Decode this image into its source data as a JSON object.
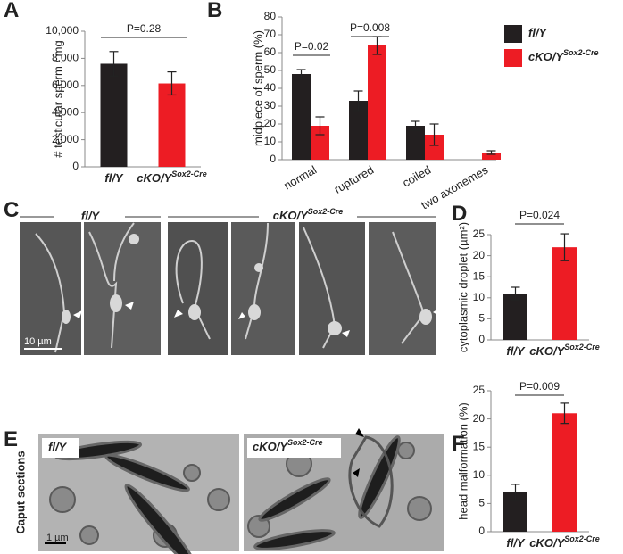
{
  "panels": {
    "labels": [
      "A",
      "B",
      "C",
      "D",
      "E",
      "F"
    ],
    "C": {
      "groups": [
        {
          "text": "fl/Y"
        },
        {
          "text": "cKO/Y",
          "sup": "Sox2-Cre"
        }
      ],
      "scale_bar": "10 µm"
    },
    "E": {
      "images": [
        {
          "text": "fl/Y"
        },
        {
          "text": "cKO/Y",
          "sup": "Sox2-Cre"
        }
      ],
      "side_label": "Caput sections",
      "scale_bar": "1 µm"
    }
  },
  "chart_data": [
    {
      "type": "bar",
      "ylabel": "# testicular sperm / mg",
      "categories": [
        {
          "text": "fl/Y"
        },
        {
          "text": "cKO/Y",
          "sup": "Sox2-Cre"
        }
      ],
      "values": [
        7600,
        6150
      ],
      "errors": [
        900,
        850
      ],
      "colors": [
        "#231f20",
        "#ed1c24"
      ],
      "ylim": [
        0,
        10000
      ],
      "yticks": [
        0,
        {
          "value": 2000,
          "label": "2,000"
        },
        {
          "value": 4000,
          "label": "4,000"
        },
        {
          "value": 6000,
          "label": "6,000"
        },
        {
          "value": 8000,
          "label": "8,000"
        },
        {
          "value": 10000,
          "label": "10,000"
        }
      ],
      "annotations": [
        {
          "text": "P=0.28"
        }
      ]
    },
    {
      "type": "bar",
      "ylabel": "midpiece of sperm (%)",
      "categories": [
        "normal",
        "ruptured",
        "coiled",
        "two axonemes"
      ],
      "series": [
        {
          "name": "fl/Y",
          "color": "#231f20",
          "values": [
            48,
            33,
            19,
            0
          ],
          "errors": [
            2.5,
            5.5,
            2.5,
            null
          ]
        },
        {
          "name": "cKO/Y",
          "name_sup": "Sox2-Cre",
          "color": "#ed1c24",
          "values": [
            19,
            64,
            14,
            4
          ],
          "errors": [
            5,
            5,
            6,
            1
          ]
        }
      ],
      "ylim": [
        0,
        80
      ],
      "yticks": [
        0,
        10,
        20,
        30,
        40,
        50,
        60,
        70,
        80
      ],
      "annotations": [
        {
          "text": "P=0.02"
        },
        {
          "text": "P=0.008"
        }
      ],
      "legend": "right"
    },
    {
      "type": "bar",
      "ylabel": "cytoplasmic droplet (µm²)",
      "categories": [
        {
          "text": "fl/Y"
        },
        {
          "text": "cKO/Y",
          "sup": "Sox2-Cre"
        }
      ],
      "values": [
        11,
        22
      ],
      "errors": [
        1.5,
        3.2
      ],
      "colors": [
        "#231f20",
        "#ed1c24"
      ],
      "ylim": [
        0,
        25
      ],
      "yticks": [
        0,
        5,
        10,
        15,
        20,
        25
      ],
      "annotations": [
        {
          "text": "P=0.024"
        }
      ]
    },
    {
      "type": "bar",
      "ylabel": "head malformation (%)",
      "categories": [
        {
          "text": "fl/Y"
        },
        {
          "text": "cKO/Y",
          "sup": "Sox2-Cre"
        }
      ],
      "values": [
        7,
        21
      ],
      "errors": [
        1.4,
        1.8
      ],
      "colors": [
        "#231f20",
        "#ed1c24"
      ],
      "ylim": [
        0,
        25
      ],
      "yticks": [
        0,
        5,
        10,
        15,
        20,
        25
      ],
      "annotations": [
        {
          "text": "P=0.009"
        }
      ]
    }
  ]
}
